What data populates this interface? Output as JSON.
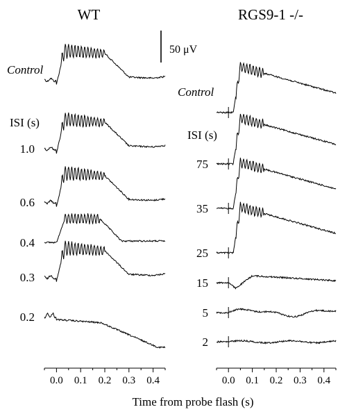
{
  "chart_data": [
    {
      "type": "line",
      "title": "WT",
      "xlabel": "Time from probe flash (s)",
      "xlim": [
        -0.05,
        0.45
      ],
      "xticks": [
        "0.0",
        "0.1",
        "0.2",
        "0.3",
        "0.4"
      ],
      "condition_header": "ISI (s)",
      "series": [
        {
          "name": "Control",
          "shape": "full",
          "osc": 9
        },
        {
          "name": "1.0",
          "shape": "full",
          "osc": 8
        },
        {
          "name": "0.6",
          "shape": "full",
          "osc": 8
        },
        {
          "name": "0.4",
          "shape": "reduced",
          "osc": 6
        },
        {
          "name": "0.3",
          "shape": "full",
          "osc": 7
        },
        {
          "name": "0.2",
          "shape": "decline",
          "osc": 0
        }
      ]
    },
    {
      "type": "line",
      "title": "RGS9-1 -/-",
      "xlabel": "Time from probe flash (s)",
      "xlim": [
        -0.05,
        0.45
      ],
      "xticks": [
        "0.0",
        "0.1",
        "0.2",
        "0.3",
        "0.4"
      ],
      "condition_header": "ISI (s)",
      "scale_bar": "50 μV",
      "series": [
        {
          "name": "Control",
          "shape": "slow",
          "osc": 6
        },
        {
          "name": "75",
          "shape": "slow",
          "osc": 6
        },
        {
          "name": "35",
          "shape": "slow",
          "osc": 5
        },
        {
          "name": "25",
          "shape": "slow",
          "osc": 4
        },
        {
          "name": "15",
          "shape": "small",
          "osc": 0
        },
        {
          "name": "5",
          "shape": "tiny",
          "osc": 0
        },
        {
          "name": "2",
          "shape": "flat",
          "osc": 0
        }
      ]
    }
  ]
}
